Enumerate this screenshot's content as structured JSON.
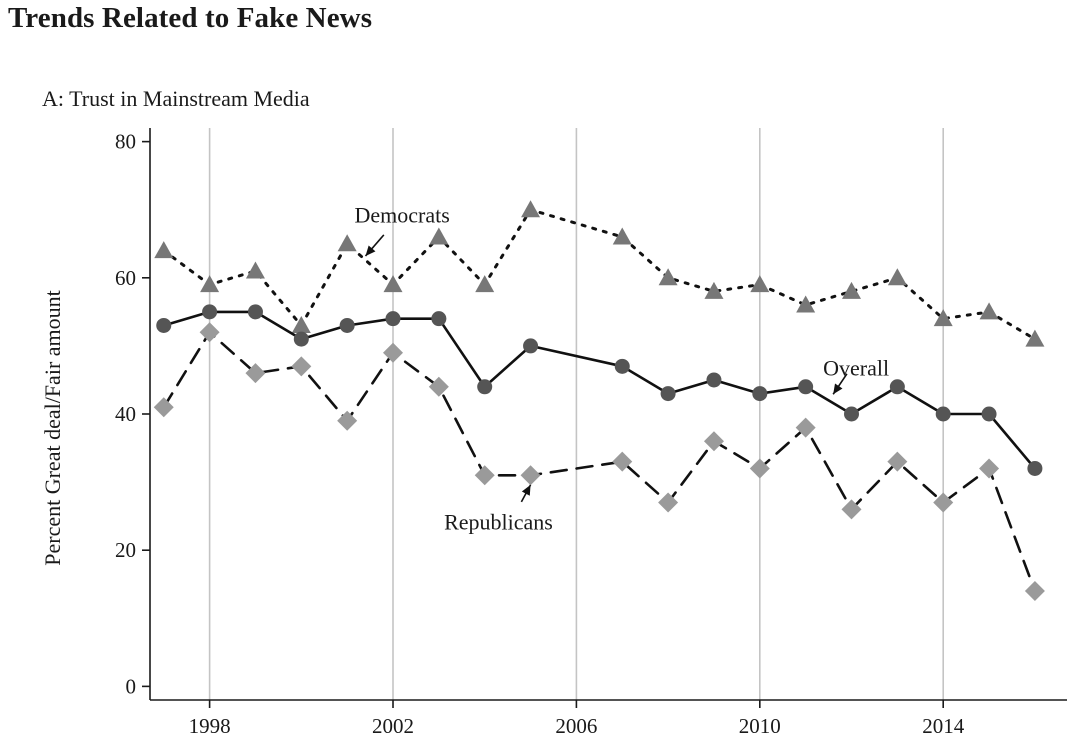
{
  "header": {
    "title": "Trends Related to Fake News",
    "panel_title": "A: Trust in Mainstream Media"
  },
  "chart_data": {
    "type": "line",
    "title": "A: Trust in Mainstream Media",
    "xlabel": "",
    "ylabel": "Percent Great deal/Fair amount",
    "xlim": [
      1996.7,
      2016.7
    ],
    "ylim": [
      -2,
      82
    ],
    "x_ticks": [
      1998,
      2002,
      2006,
      2010,
      2014
    ],
    "y_ticks": [
      0,
      20,
      40,
      60,
      80
    ],
    "grid": "vertical",
    "series": [
      {
        "name": "Democrats",
        "style": "dotted",
        "marker": "triangle",
        "color": "#777777",
        "points": [
          [
            1997,
            64
          ],
          [
            1998,
            59
          ],
          [
            1999,
            61
          ],
          [
            2000,
            53
          ],
          [
            2001,
            65
          ],
          [
            2002,
            59
          ],
          [
            2003,
            66
          ],
          [
            2004,
            59
          ],
          [
            2005,
            70
          ],
          [
            2007,
            66
          ],
          [
            2008,
            60
          ],
          [
            2009,
            58
          ],
          [
            2010,
            59
          ],
          [
            2011,
            56
          ],
          [
            2012,
            58
          ],
          [
            2013,
            60
          ],
          [
            2014,
            54
          ],
          [
            2015,
            55
          ],
          [
            2016,
            51
          ]
        ]
      },
      {
        "name": "Overall",
        "style": "solid",
        "marker": "circle",
        "color": "#555555",
        "points": [
          [
            1997,
            53
          ],
          [
            1998,
            55
          ],
          [
            1999,
            55
          ],
          [
            2000,
            51
          ],
          [
            2001,
            53
          ],
          [
            2002,
            54
          ],
          [
            2003,
            54
          ],
          [
            2004,
            44
          ],
          [
            2005,
            50
          ],
          [
            2007,
            47
          ],
          [
            2008,
            43
          ],
          [
            2009,
            45
          ],
          [
            2010,
            43
          ],
          [
            2011,
            44
          ],
          [
            2012,
            40
          ],
          [
            2013,
            44
          ],
          [
            2014,
            40
          ],
          [
            2015,
            40
          ],
          [
            2016,
            32
          ]
        ]
      },
      {
        "name": "Republicans",
        "style": "dashed",
        "marker": "diamond",
        "color": "#9a9a9a",
        "points": [
          [
            1997,
            41
          ],
          [
            1998,
            52
          ],
          [
            1999,
            46
          ],
          [
            2000,
            47
          ],
          [
            2001,
            39
          ],
          [
            2002,
            49
          ],
          [
            2003,
            44
          ],
          [
            2004,
            31
          ],
          [
            2005,
            31
          ],
          [
            2007,
            33
          ],
          [
            2008,
            27
          ],
          [
            2009,
            36
          ],
          [
            2010,
            32
          ],
          [
            2011,
            38
          ],
          [
            2012,
            26
          ],
          [
            2013,
            33
          ],
          [
            2014,
            27
          ],
          [
            2015,
            32
          ],
          [
            2016,
            14
          ]
        ]
      }
    ],
    "annotations": [
      {
        "text": "Democrats",
        "series": "Democrats"
      },
      {
        "text": "Overall",
        "series": "Overall"
      },
      {
        "text": "Republicans",
        "series": "Republicans"
      }
    ]
  }
}
